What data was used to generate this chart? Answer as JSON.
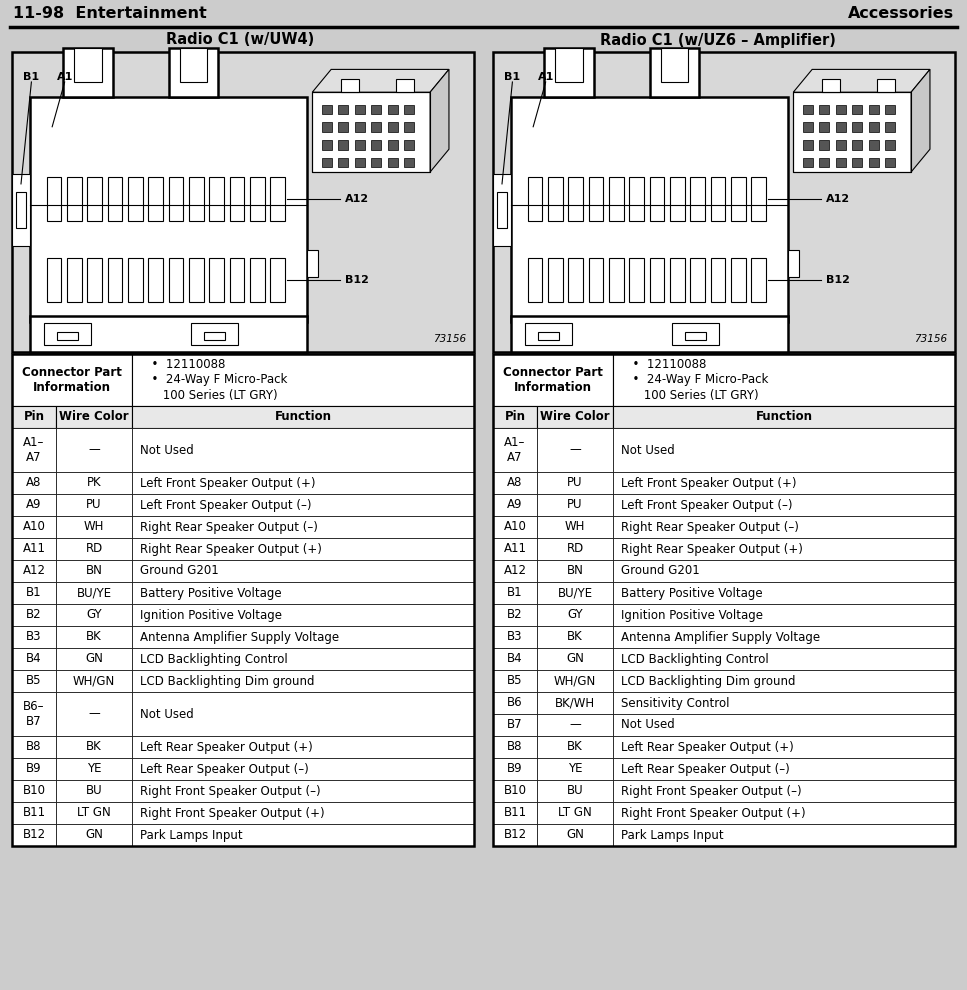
{
  "title_left": "11-98  Entertainment",
  "title_right": "Accessories",
  "subtitle_left": "Radio C1 (w/UW4)",
  "subtitle_right": "Radio C1 (w/UZ6 – Amplifier)",
  "connector_info_title": "Connector Part\nInformation",
  "connector_bullets": "  •  12110088\n  •  24-Way F Micro-Pack\n     100 Series (LT GRY)",
  "col_headers": [
    "Pin",
    "Wire Color",
    "Function"
  ],
  "diagram_number": "73156",
  "table1_rows": [
    [
      "A1–\nA7",
      "—",
      "Not Used"
    ],
    [
      "A8",
      "PK",
      "Left Front Speaker Output (+)"
    ],
    [
      "A9",
      "PU",
      "Left Front Speaker Output (–)"
    ],
    [
      "A10",
      "WH",
      "Right Rear Speaker Output (–)"
    ],
    [
      "A11",
      "RD",
      "Right Rear Speaker Output (+)"
    ],
    [
      "A12",
      "BN",
      "Ground G201"
    ],
    [
      "B1",
      "BU/YE",
      "Battery Positive Voltage"
    ],
    [
      "B2",
      "GY",
      "Ignition Positive Voltage"
    ],
    [
      "B3",
      "BK",
      "Antenna Amplifier Supply Voltage"
    ],
    [
      "B4",
      "GN",
      "LCD Backlighting Control"
    ],
    [
      "B5",
      "WH/GN",
      "LCD Backlighting Dim ground"
    ],
    [
      "B6–\nB7",
      "—",
      "Not Used"
    ],
    [
      "B8",
      "BK",
      "Left Rear Speaker Output (+)"
    ],
    [
      "B9",
      "YE",
      "Left Rear Speaker Output (–)"
    ],
    [
      "B10",
      "BU",
      "Right Front Speaker Output (–)"
    ],
    [
      "B11",
      "LT GN",
      "Right Front Speaker Output (+)"
    ],
    [
      "B12",
      "GN",
      "Park Lamps Input"
    ]
  ],
  "table2_rows": [
    [
      "A1–\nA7",
      "—",
      "Not Used"
    ],
    [
      "A8",
      "PU",
      "Left Front Speaker Output (+)"
    ],
    [
      "A9",
      "PU",
      "Left Front Speaker Output (–)"
    ],
    [
      "A10",
      "WH",
      "Right Rear Speaker Output (–)"
    ],
    [
      "A11",
      "RD",
      "Right Rear Speaker Output (+)"
    ],
    [
      "A12",
      "BN",
      "Ground G201"
    ],
    [
      "B1",
      "BU/YE",
      "Battery Positive Voltage"
    ],
    [
      "B2",
      "GY",
      "Ignition Positive Voltage"
    ],
    [
      "B3",
      "BK",
      "Antenna Amplifier Supply Voltage"
    ],
    [
      "B4",
      "GN",
      "LCD Backlighting Control"
    ],
    [
      "B5",
      "WH/GN",
      "LCD Backlighting Dim ground"
    ],
    [
      "B6",
      "BK/WH",
      "Sensitivity Control"
    ],
    [
      "B7",
      "—",
      "Not Used"
    ],
    [
      "B8",
      "BK",
      "Left Rear Speaker Output (+)"
    ],
    [
      "B9",
      "YE",
      "Left Rear Speaker Output (–)"
    ],
    [
      "B10",
      "BU",
      "Right Front Speaker Output (–)"
    ],
    [
      "B11",
      "LT GN",
      "Right Front Speaker Output (+)"
    ],
    [
      "B12",
      "GN",
      "Park Lamps Input"
    ]
  ],
  "bg_color": "#cccccc",
  "table_bg": "#ffffff",
  "diagram_bg": "#d8d8d8",
  "line_color": "#000000",
  "text_color": "#000000",
  "lw_thick": 1.8,
  "lw_thin": 0.8
}
